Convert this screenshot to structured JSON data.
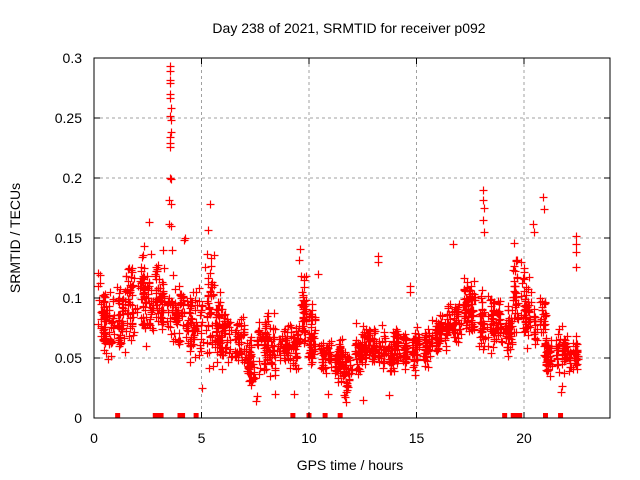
{
  "chart_data": {
    "type": "scatter",
    "title": "Day 238 of 2021, SRMTID for receiver p092",
    "xlabel": "GPS time / hours",
    "ylabel": "SRMTID / TECUs",
    "xlim": [
      0,
      24
    ],
    "ylim": [
      0,
      0.3
    ],
    "xticks": [
      0,
      5,
      10,
      15,
      20
    ],
    "xtick_labels": [
      "0",
      "5",
      "10",
      "15",
      "20"
    ],
    "yticks": [
      0,
      0.05,
      0.1,
      0.15,
      0.2,
      0.25,
      0.3
    ],
    "ytick_labels": [
      "0",
      "0.05",
      "0.1",
      "0.15",
      "0.2",
      "0.25",
      "0.3"
    ],
    "grid": true,
    "legend": "none",
    "marker": "plus",
    "series_color": "#ff0000",
    "envelope": [
      {
        "x": [
          0.0,
          0.5
        ],
        "lo": 0.045,
        "hi": 0.125
      },
      {
        "x": [
          0.5,
          1.0
        ],
        "lo": 0.045,
        "hi": 0.11
      },
      {
        "x": [
          1.0,
          1.5
        ],
        "lo": 0.04,
        "hi": 0.12
      },
      {
        "x": [
          1.5,
          2.0
        ],
        "lo": 0.055,
        "hi": 0.145
      },
      {
        "x": [
          2.0,
          2.5
        ],
        "lo": 0.06,
        "hi": 0.15
      },
      {
        "x": [
          2.5,
          3.0
        ],
        "lo": 0.055,
        "hi": 0.145
      },
      {
        "x": [
          3.0,
          3.5
        ],
        "lo": 0.055,
        "hi": 0.135
      },
      {
        "x": [
          3.5,
          4.0
        ],
        "lo": 0.05,
        "hi": 0.13
      },
      {
        "x": [
          4.0,
          4.5
        ],
        "lo": 0.045,
        "hi": 0.12
      },
      {
        "x": [
          4.5,
          5.0
        ],
        "lo": 0.04,
        "hi": 0.125
      },
      {
        "x": [
          5.0,
          5.5
        ],
        "lo": 0.03,
        "hi": 0.15
      },
      {
        "x": [
          5.5,
          6.0
        ],
        "lo": 0.04,
        "hi": 0.11
      },
      {
        "x": [
          6.0,
          6.5
        ],
        "lo": 0.035,
        "hi": 0.1
      },
      {
        "x": [
          6.5,
          7.0
        ],
        "lo": 0.03,
        "hi": 0.09
      },
      {
        "x": [
          7.0,
          7.5
        ],
        "lo": 0.02,
        "hi": 0.075
      },
      {
        "x": [
          7.5,
          8.0
        ],
        "lo": 0.025,
        "hi": 0.085
      },
      {
        "x": [
          8.0,
          8.5
        ],
        "lo": 0.03,
        "hi": 0.1
      },
      {
        "x": [
          8.5,
          9.0
        ],
        "lo": 0.04,
        "hi": 0.09
      },
      {
        "x": [
          9.0,
          9.5
        ],
        "lo": 0.035,
        "hi": 0.095
      },
      {
        "x": [
          9.5,
          10.0
        ],
        "lo": 0.04,
        "hi": 0.13
      },
      {
        "x": [
          10.0,
          10.5
        ],
        "lo": 0.035,
        "hi": 0.1
      },
      {
        "x": [
          10.5,
          11.0
        ],
        "lo": 0.035,
        "hi": 0.075
      },
      {
        "x": [
          11.0,
          11.5
        ],
        "lo": 0.025,
        "hi": 0.07
      },
      {
        "x": [
          11.5,
          12.0
        ],
        "lo": 0.015,
        "hi": 0.06
      },
      {
        "x": [
          12.0,
          12.5
        ],
        "lo": 0.03,
        "hi": 0.08
      },
      {
        "x": [
          12.5,
          13.0
        ],
        "lo": 0.035,
        "hi": 0.085
      },
      {
        "x": [
          13.0,
          13.5
        ],
        "lo": 0.035,
        "hi": 0.08
      },
      {
        "x": [
          13.5,
          14.0
        ],
        "lo": 0.03,
        "hi": 0.075
      },
      {
        "x": [
          14.0,
          14.5
        ],
        "lo": 0.035,
        "hi": 0.08
      },
      {
        "x": [
          14.5,
          15.0
        ],
        "lo": 0.035,
        "hi": 0.08
      },
      {
        "x": [
          15.0,
          15.5
        ],
        "lo": 0.04,
        "hi": 0.08
      },
      {
        "x": [
          15.5,
          16.0
        ],
        "lo": 0.045,
        "hi": 0.09
      },
      {
        "x": [
          16.0,
          16.5
        ],
        "lo": 0.05,
        "hi": 0.1
      },
      {
        "x": [
          16.5,
          17.0
        ],
        "lo": 0.055,
        "hi": 0.11
      },
      {
        "x": [
          17.0,
          17.5
        ],
        "lo": 0.06,
        "hi": 0.12
      },
      {
        "x": [
          17.5,
          18.0
        ],
        "lo": 0.055,
        "hi": 0.125
      },
      {
        "x": [
          18.0,
          18.5
        ],
        "lo": 0.05,
        "hi": 0.115
      },
      {
        "x": [
          18.5,
          19.0
        ],
        "lo": 0.045,
        "hi": 0.11
      },
      {
        "x": [
          19.0,
          19.5
        ],
        "lo": 0.05,
        "hi": 0.1
      },
      {
        "x": [
          19.5,
          20.0
        ],
        "lo": 0.055,
        "hi": 0.15
      },
      {
        "x": [
          20.0,
          20.5
        ],
        "lo": 0.05,
        "hi": 0.12
      },
      {
        "x": [
          20.5,
          21.0
        ],
        "lo": 0.05,
        "hi": 0.11
      },
      {
        "x": [
          21.0,
          21.5
        ],
        "lo": 0.035,
        "hi": 0.07
      },
      {
        "x": [
          21.5,
          22.0
        ],
        "lo": 0.03,
        "hi": 0.08
      },
      {
        "x": [
          22.0,
          22.5
        ],
        "lo": 0.035,
        "hi": 0.07
      }
    ],
    "points_per_segment": 44,
    "outliers": [
      [
        3.55,
        0.293
      ],
      [
        3.55,
        0.289
      ],
      [
        3.55,
        0.282
      ],
      [
        3.55,
        0.279
      ],
      [
        3.55,
        0.27
      ],
      [
        3.55,
        0.267
      ],
      [
        3.6,
        0.258
      ],
      [
        3.55,
        0.252
      ],
      [
        3.6,
        0.248
      ],
      [
        3.6,
        0.238
      ],
      [
        3.55,
        0.234
      ],
      [
        3.55,
        0.229
      ],
      [
        3.55,
        0.226
      ],
      [
        3.55,
        0.2
      ],
      [
        3.6,
        0.199
      ],
      [
        3.5,
        0.182
      ],
      [
        3.6,
        0.178
      ],
      [
        3.5,
        0.162
      ],
      [
        3.6,
        0.16
      ],
      [
        3.65,
        0.14
      ],
      [
        4.25,
        0.15
      ],
      [
        4.2,
        0.148
      ],
      [
        5.4,
        0.178
      ],
      [
        5.3,
        0.157
      ],
      [
        2.55,
        0.163
      ],
      [
        3.2,
        0.14
      ],
      [
        9.6,
        0.141
      ],
      [
        9.55,
        0.132
      ],
      [
        10.4,
        0.12
      ],
      [
        13.2,
        0.135
      ],
      [
        13.2,
        0.13
      ],
      [
        14.7,
        0.11
      ],
      [
        14.7,
        0.105
      ],
      [
        16.7,
        0.145
      ],
      [
        18.1,
        0.19
      ],
      [
        18.1,
        0.182
      ],
      [
        18.15,
        0.175
      ],
      [
        18.1,
        0.165
      ],
      [
        18.15,
        0.155
      ],
      [
        20.9,
        0.184
      ],
      [
        20.95,
        0.174
      ],
      [
        20.4,
        0.162
      ],
      [
        20.45,
        0.155
      ],
      [
        22.4,
        0.152
      ],
      [
        22.4,
        0.145
      ],
      [
        22.4,
        0.138
      ],
      [
        22.4,
        0.126
      ],
      [
        7.6,
        0.018
      ],
      [
        7.55,
        0.014
      ],
      [
        11.7,
        0.013
      ],
      [
        12.5,
        0.015
      ],
      [
        13.7,
        0.019
      ],
      [
        21.7,
        0.022
      ],
      [
        21.75,
        0.027
      ],
      [
        5.0,
        0.025
      ],
      [
        8.4,
        0.02
      ],
      [
        9.3,
        0.02
      ],
      [
        10.9,
        0.02
      ]
    ],
    "zero_markers": [
      1.1,
      2.85,
      2.95,
      3.05,
      3.12,
      4.0,
      4.12,
      4.75,
      9.25,
      10.0,
      10.75,
      11.45,
      19.1,
      19.5,
      19.6,
      19.7,
      19.8,
      21.0,
      21.7
    ]
  }
}
